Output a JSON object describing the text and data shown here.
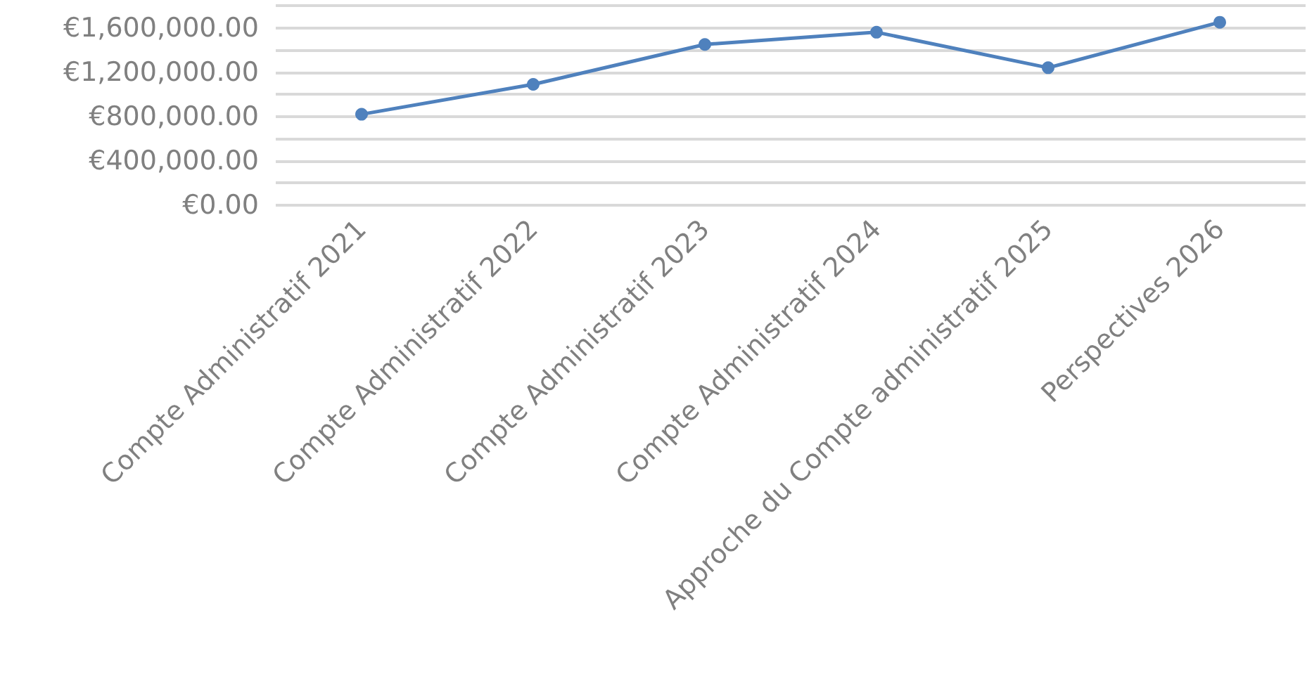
{
  "chart_data": {
    "type": "line",
    "categories": [
      "Compte Administratif 2021",
      "Compte Administratif 2022",
      "Compte Administratif 2023",
      "Compte Administratif 2024",
      "Approche du Compte administratif 2025",
      "Perspectives 2026"
    ],
    "series": [
      {
        "color": "#4f81bd",
        "values": [
          820000,
          1090000,
          1450000,
          1560000,
          1240000,
          1650000
        ]
      }
    ],
    "ylim": [
      0,
      1800000
    ],
    "yticks": [
      {
        "value": 0,
        "label": "€0.00"
      },
      {
        "value": 200000,
        "label": null
      },
      {
        "value": 400000,
        "label": "€400,000.00"
      },
      {
        "value": 600000,
        "label": null
      },
      {
        "value": 800000,
        "label": "€800,000.00"
      },
      {
        "value": 1000000,
        "label": null
      },
      {
        "value": 1200000,
        "label": "€1,200,000.00"
      },
      {
        "value": 1400000,
        "label": null
      },
      {
        "value": 1600000,
        "label": "€1,600,000.00"
      },
      {
        "value": 1800000,
        "label": null
      }
    ],
    "grid": "y",
    "marker": "circle",
    "line_style": "solid"
  }
}
